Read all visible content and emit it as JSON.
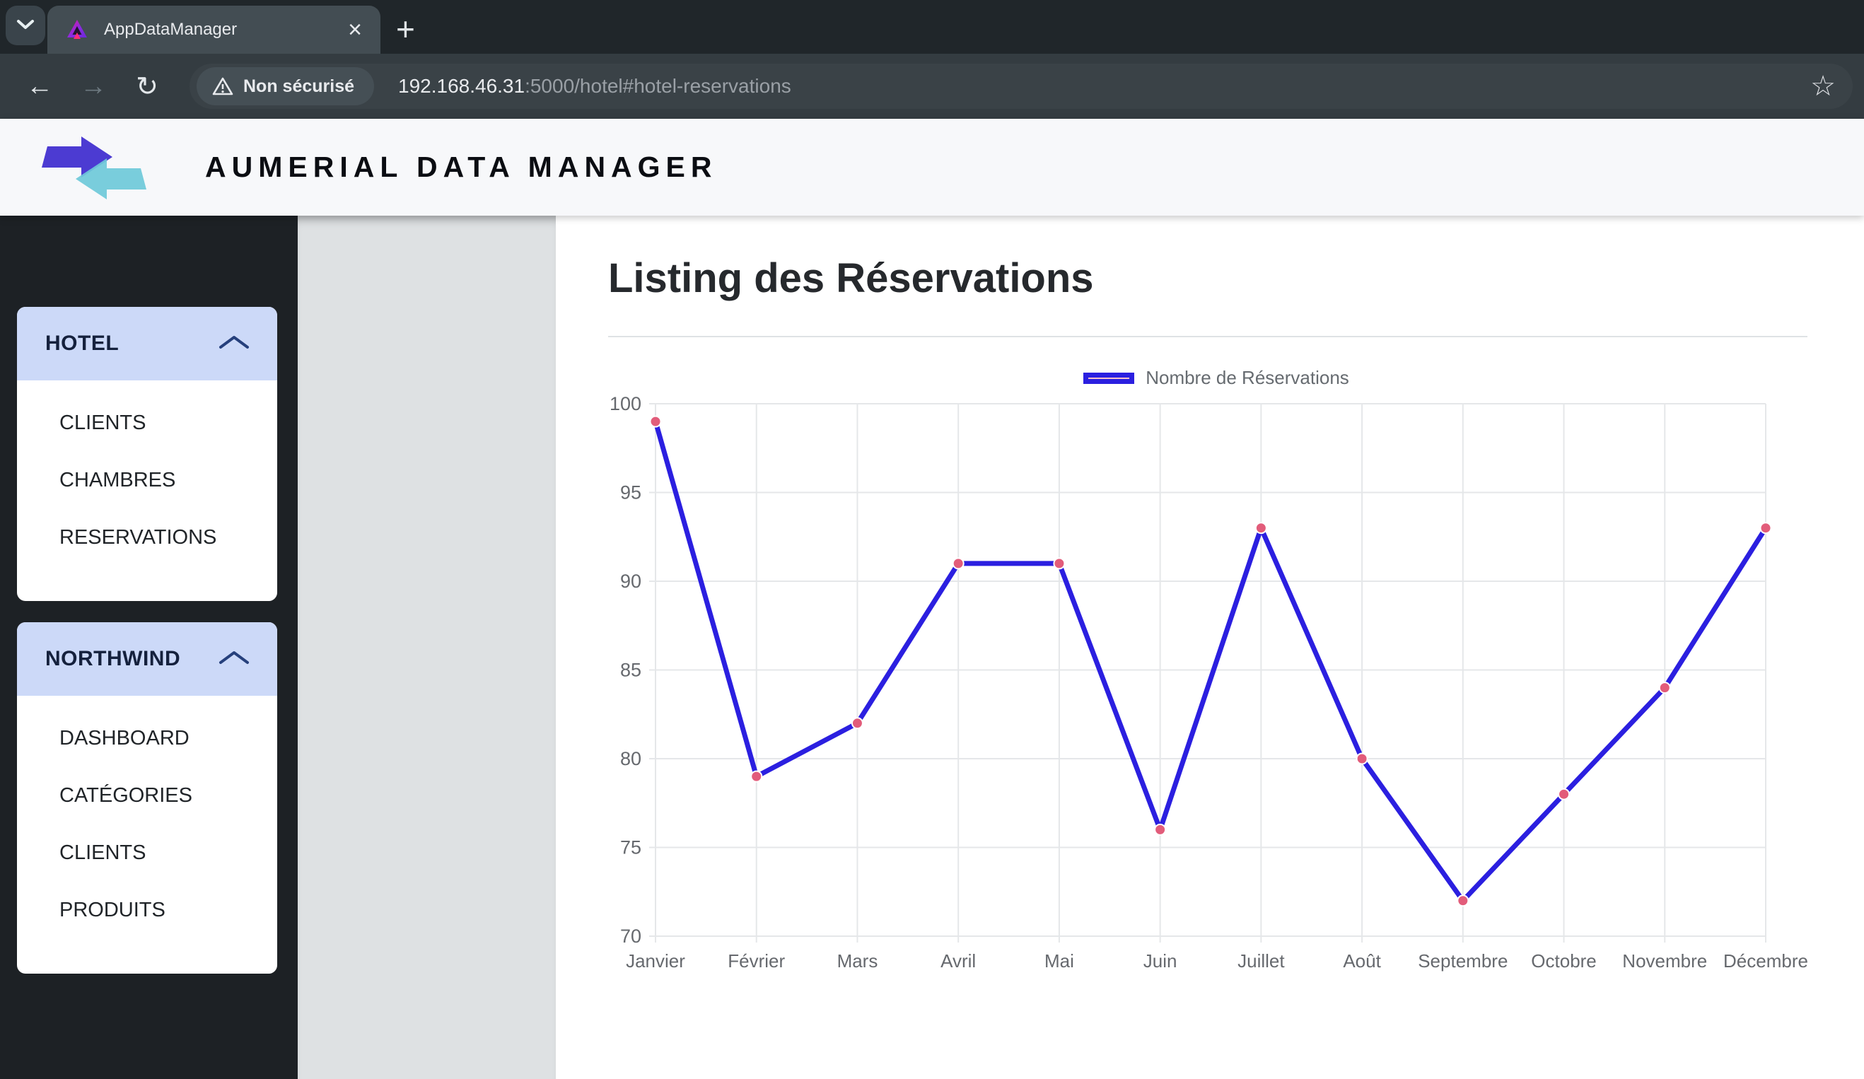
{
  "browser": {
    "tab": {
      "title": "AppDataManager"
    },
    "icons": {
      "back": "←",
      "forward": "→",
      "reload": "↻",
      "star": "☆",
      "close": "×",
      "new_tab": "+"
    },
    "toolbar": {
      "security_badge": "Non sécurisé",
      "url_host": "192.168.46.31",
      "url_path": ":5000/hotel#hotel-reservations"
    }
  },
  "app_header": {
    "title": "AUMERIAL DATA MANAGER"
  },
  "sidebar": {
    "sections": [
      {
        "label": "HOTEL",
        "items": [
          "CLIENTS",
          "CHAMBRES",
          "RESERVATIONS"
        ]
      },
      {
        "label": "NORTHWIND",
        "items": [
          "DASHBOARD",
          "CATÉGORIES",
          "CLIENTS",
          "PRODUITS"
        ]
      }
    ]
  },
  "main": {
    "page_title": "Listing des Réservations"
  },
  "chart_data": {
    "type": "line",
    "title": "",
    "xlabel": "",
    "ylabel": "",
    "categories": [
      "Janvier",
      "Février",
      "Mars",
      "Avril",
      "Mai",
      "Juin",
      "Juillet",
      "Août",
      "Septembre",
      "Octobre",
      "Novembre",
      "Décembre"
    ],
    "series": [
      {
        "name": "Nombre de Réservations",
        "values": [
          99,
          79,
          82,
          91,
          91,
          76,
          93,
          80,
          72,
          78,
          84,
          93
        ]
      }
    ],
    "ylim": [
      70,
      100
    ],
    "ytick_step": 5,
    "grid": true,
    "legend_position": "top",
    "colors": {
      "line": "#2b1fe0",
      "point": "#e25c7a",
      "point_border": "#ffffff",
      "legend_fill": "#ffc0cb",
      "grid": "#e5e7e9",
      "tick_label": "#66696e"
    }
  }
}
